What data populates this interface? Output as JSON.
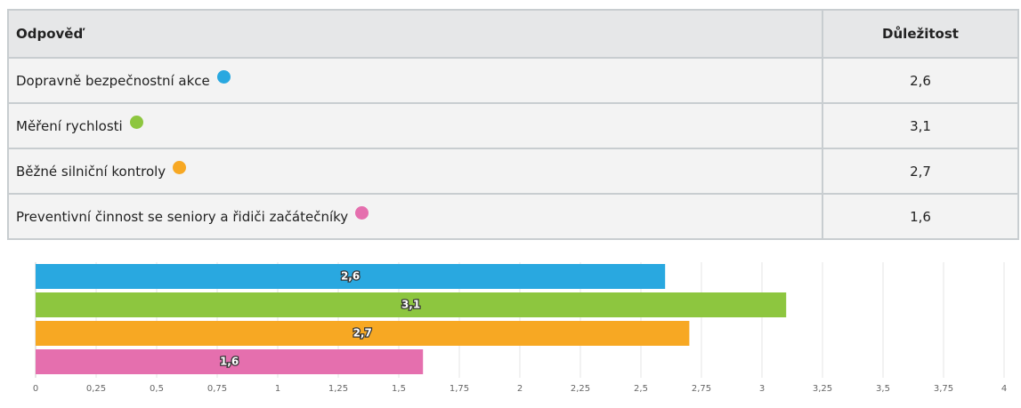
{
  "table": {
    "header": [
      "Odpověď",
      "Důležitost"
    ],
    "rows": [
      [
        "Dopravně bezpečnostní akce",
        "2,6"
      ],
      [
        "Měření rychlosti",
        "3,1"
      ],
      [
        "Běžné silniční kontroly",
        "2,7"
      ],
      [
        "Preventivní činnost se seniory a řidiči začátečníky",
        "1,6"
      ]
    ]
  },
  "chart_data": {
    "type": "hbar",
    "categories": [
      "Dopravně bezpečnostní akce",
      "Měření rychlosti",
      "Běžné silniční kontroly",
      "Preventivní činnost se seniory a řidiči začátečníky"
    ],
    "values": [
      2.6,
      3.1,
      2.7,
      1.6
    ],
    "value_labels": [
      "2,6",
      "3,1",
      "2,7",
      "1,6"
    ],
    "colors": [
      "#29a8e0",
      "#8dc63f",
      "#f7a823",
      "#e56fae"
    ],
    "xlim": [
      0,
      4
    ],
    "xticks": [
      0,
      {
        "value": 0.25,
        "label": "0,25"
      },
      {
        "value": 0.5,
        "label": "0,5"
      },
      {
        "value": 0.75,
        "label": "0,75"
      },
      1,
      {
        "value": 1.25,
        "label": "1,25"
      },
      {
        "value": 1.5,
        "label": "1,5"
      },
      {
        "value": 1.75,
        "label": "1,75"
      },
      2,
      {
        "value": 2.25,
        "label": "2,25"
      },
      {
        "value": 2.5,
        "label": "2,5"
      },
      {
        "value": 2.75,
        "label": "2,75"
      },
      3,
      {
        "value": 3.25,
        "label": "3,25"
      },
      {
        "value": 3.5,
        "label": "3,5"
      },
      {
        "value": 3.75,
        "label": "3,75"
      },
      4
    ],
    "grid": true
  }
}
